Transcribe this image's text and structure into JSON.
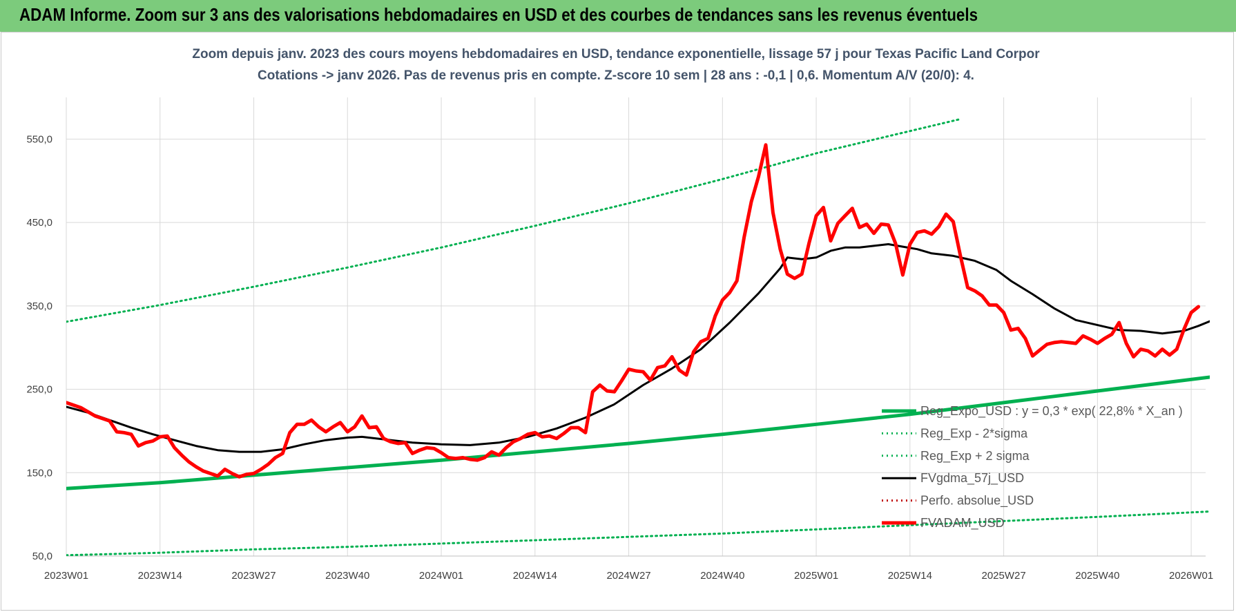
{
  "banner": {
    "title": "ADAM Informe. Zoom sur 3 ans des valorisations hebdomadaires en USD et des courbes de tendances sans les revenus éventuels",
    "color": "#7ccb7c"
  },
  "chart_data": {
    "type": "line",
    "title_line1": "Zoom depuis janv. 2023 des cours moyens hebdomadaires en USD, tendance exponentielle, lissage 57 j pour Texas Pacific Land Corpor",
    "title_line2": "Cotations -> janv 2026. Pas de revenus pris en compte. Z-score 10 sem | 28 ans : -0,1 | 0,6. Momentum A/V (20/0): 4.",
    "ylim": [
      50,
      600
    ],
    "yticks": [
      50,
      150,
      250,
      350,
      450,
      550
    ],
    "ytick_labels": [
      "50,0",
      "150,0",
      "250,0",
      "350,0",
      "450,0",
      "550,0"
    ],
    "x_range": [
      0,
      158
    ],
    "xtick_positions": [
      0,
      13,
      26,
      39,
      52,
      65,
      78,
      91,
      104,
      117,
      130,
      143,
      156
    ],
    "xtick_labels": [
      "2023W01",
      "2023W14",
      "2023W27",
      "2023W40",
      "2024W01",
      "2024W14",
      "2024W27",
      "2024W40",
      "2025W01",
      "2025W14",
      "2025W27",
      "2025W40",
      "2026W01"
    ],
    "grid": true,
    "legend_position": "bottom-right",
    "series": [
      {
        "name": "Reg_Expo_USD : y = 0,3 * exp( 22,8% *  X_an )",
        "color": "#00b050",
        "style": "solid-thick",
        "points": [
          [
            0,
            131
          ],
          [
            13,
            138
          ],
          [
            26,
            147
          ],
          [
            39,
            156
          ],
          [
            52,
            165
          ],
          [
            65,
            175
          ],
          [
            78,
            185
          ],
          [
            91,
            196
          ],
          [
            104,
            208
          ],
          [
            117,
            220
          ],
          [
            130,
            234
          ],
          [
            143,
            248
          ],
          [
            160,
            266
          ]
        ]
      },
      {
        "name": "Reg_Exp - 2*sigma",
        "color": "#00b050",
        "style": "dotted",
        "points": [
          [
            0,
            51
          ],
          [
            13,
            54
          ],
          [
            26,
            58
          ],
          [
            39,
            61
          ],
          [
            52,
            65
          ],
          [
            65,
            69
          ],
          [
            78,
            73
          ],
          [
            91,
            77
          ],
          [
            104,
            82
          ],
          [
            117,
            87
          ],
          [
            130,
            92
          ],
          [
            143,
            97
          ],
          [
            160,
            104
          ]
        ]
      },
      {
        "name": "Reg_Exp + 2 sigma",
        "color": "#00b050",
        "style": "dotted",
        "points": [
          [
            0,
            331
          ],
          [
            13,
            351
          ],
          [
            26,
            373
          ],
          [
            39,
            396
          ],
          [
            52,
            420
          ],
          [
            65,
            446
          ],
          [
            78,
            473
          ],
          [
            91,
            502
          ],
          [
            104,
            533
          ],
          [
            124,
            574
          ]
        ]
      },
      {
        "name": "FVgdma_57j_USD",
        "color": "#000000",
        "style": "solid",
        "points": [
          [
            0,
            229
          ],
          [
            3,
            222
          ],
          [
            6,
            213
          ],
          [
            9,
            204
          ],
          [
            12,
            196
          ],
          [
            15,
            189
          ],
          [
            18,
            182
          ],
          [
            21,
            177
          ],
          [
            24,
            175
          ],
          [
            27,
            175
          ],
          [
            30,
            178
          ],
          [
            33,
            184
          ],
          [
            36,
            189
          ],
          [
            39,
            192
          ],
          [
            41,
            193
          ],
          [
            44,
            190
          ],
          [
            48,
            186
          ],
          [
            52,
            184
          ],
          [
            56,
            183
          ],
          [
            60,
            186
          ],
          [
            64,
            193
          ],
          [
            68,
            203
          ],
          [
            72,
            216
          ],
          [
            76,
            232
          ],
          [
            80,
            255
          ],
          [
            84,
            275
          ],
          [
            88,
            298
          ],
          [
            92,
            330
          ],
          [
            96,
            365
          ],
          [
            99,
            395
          ],
          [
            100,
            408
          ],
          [
            102,
            406
          ],
          [
            104,
            408
          ],
          [
            106,
            416
          ],
          [
            108,
            420
          ],
          [
            110,
            420
          ],
          [
            112,
            422
          ],
          [
            114,
            424
          ],
          [
            116,
            421
          ],
          [
            118,
            418
          ],
          [
            120,
            413
          ],
          [
            123,
            410
          ],
          [
            126,
            404
          ],
          [
            129,
            393
          ],
          [
            131,
            380
          ],
          [
            134,
            364
          ],
          [
            137,
            347
          ],
          [
            140,
            333
          ],
          [
            143,
            327
          ],
          [
            146,
            321
          ],
          [
            149,
            320
          ],
          [
            152,
            317
          ],
          [
            155,
            320
          ],
          [
            157,
            326
          ],
          [
            159,
            333
          ]
        ]
      },
      {
        "name": "Perfo. absolue_USD",
        "color": "#c00000",
        "style": "dotted",
        "points": []
      },
      {
        "name": "FVADAM_USD",
        "color": "#ff0000",
        "style": "solid-thick",
        "points": [
          [
            0,
            234
          ],
          [
            2,
            228
          ],
          [
            4,
            218
          ],
          [
            6,
            212
          ],
          [
            7,
            199
          ],
          [
            8,
            198
          ],
          [
            9,
            196
          ],
          [
            10,
            182
          ],
          [
            11,
            186
          ],
          [
            12,
            188
          ],
          [
            13,
            193
          ],
          [
            14,
            194
          ],
          [
            15,
            180
          ],
          [
            16,
            171
          ],
          [
            17,
            163
          ],
          [
            18,
            157
          ],
          [
            19,
            152
          ],
          [
            20,
            149
          ],
          [
            21,
            146
          ],
          [
            22,
            154
          ],
          [
            23,
            149
          ],
          [
            24,
            145
          ],
          [
            25,
            148
          ],
          [
            26,
            149
          ],
          [
            27,
            154
          ],
          [
            28,
            160
          ],
          [
            29,
            168
          ],
          [
            30,
            173
          ],
          [
            31,
            198
          ],
          [
            32,
            208
          ],
          [
            33,
            208
          ],
          [
            34,
            213
          ],
          [
            35,
            205
          ],
          [
            36,
            199
          ],
          [
            37,
            205
          ],
          [
            38,
            210
          ],
          [
            39,
            199
          ],
          [
            40,
            205
          ],
          [
            41,
            218
          ],
          [
            42,
            204
          ],
          [
            43,
            205
          ],
          [
            44,
            191
          ],
          [
            45,
            187
          ],
          [
            46,
            185
          ],
          [
            47,
            186
          ],
          [
            48,
            173
          ],
          [
            49,
            177
          ],
          [
            50,
            180
          ],
          [
            51,
            179
          ],
          [
            52,
            174
          ],
          [
            53,
            168
          ],
          [
            54,
            167
          ],
          [
            55,
            168
          ],
          [
            56,
            166
          ],
          [
            57,
            165
          ],
          [
            58,
            168
          ],
          [
            59,
            175
          ],
          [
            60,
            171
          ],
          [
            61,
            180
          ],
          [
            62,
            187
          ],
          [
            63,
            191
          ],
          [
            64,
            196
          ],
          [
            65,
            198
          ],
          [
            66,
            193
          ],
          [
            67,
            194
          ],
          [
            68,
            191
          ],
          [
            69,
            197
          ],
          [
            70,
            204
          ],
          [
            71,
            204
          ],
          [
            72,
            198
          ],
          [
            73,
            247
          ],
          [
            74,
            255
          ],
          [
            75,
            248
          ],
          [
            76,
            247
          ],
          [
            77,
            260
          ],
          [
            78,
            274
          ],
          [
            79,
            272
          ],
          [
            80,
            271
          ],
          [
            81,
            261
          ],
          [
            82,
            276
          ],
          [
            83,
            278
          ],
          [
            84,
            289
          ],
          [
            85,
            273
          ],
          [
            86,
            267
          ],
          [
            87,
            295
          ],
          [
            88,
            307
          ],
          [
            89,
            311
          ],
          [
            90,
            338
          ],
          [
            91,
            357
          ],
          [
            92,
            366
          ],
          [
            93,
            380
          ],
          [
            94,
            432
          ],
          [
            95,
            475
          ],
          [
            96,
            505
          ],
          [
            97,
            543
          ],
          [
            98,
            462
          ],
          [
            99,
            418
          ],
          [
            100,
            388
          ],
          [
            101,
            383
          ],
          [
            102,
            388
          ],
          [
            103,
            425
          ],
          [
            104,
            458
          ],
          [
            105,
            468
          ],
          [
            106,
            428
          ],
          [
            107,
            449
          ],
          [
            108,
            458
          ],
          [
            109,
            467
          ],
          [
            110,
            444
          ],
          [
            111,
            448
          ],
          [
            112,
            437
          ],
          [
            113,
            448
          ],
          [
            114,
            447
          ],
          [
            115,
            425
          ],
          [
            116,
            387
          ],
          [
            117,
            424
          ],
          [
            118,
            438
          ],
          [
            119,
            440
          ],
          [
            120,
            436
          ],
          [
            121,
            445
          ],
          [
            122,
            460
          ],
          [
            123,
            451
          ],
          [
            124,
            410
          ],
          [
            125,
            372
          ],
          [
            126,
            368
          ],
          [
            127,
            362
          ],
          [
            128,
            351
          ],
          [
            129,
            351
          ],
          [
            130,
            342
          ],
          [
            131,
            321
          ],
          [
            132,
            323
          ],
          [
            133,
            311
          ],
          [
            134,
            290
          ],
          [
            135,
            297
          ],
          [
            136,
            304
          ],
          [
            137,
            306
          ],
          [
            138,
            307
          ],
          [
            139,
            306
          ],
          [
            140,
            305
          ],
          [
            141,
            314
          ],
          [
            142,
            310
          ],
          [
            143,
            305
          ],
          [
            144,
            311
          ],
          [
            145,
            316
          ],
          [
            146,
            330
          ],
          [
            147,
            305
          ],
          [
            148,
            289
          ],
          [
            149,
            298
          ],
          [
            150,
            296
          ],
          [
            151,
            290
          ],
          [
            152,
            298
          ],
          [
            153,
            291
          ],
          [
            154,
            298
          ],
          [
            155,
            322
          ],
          [
            156,
            342
          ],
          [
            157,
            349
          ]
        ]
      }
    ]
  }
}
